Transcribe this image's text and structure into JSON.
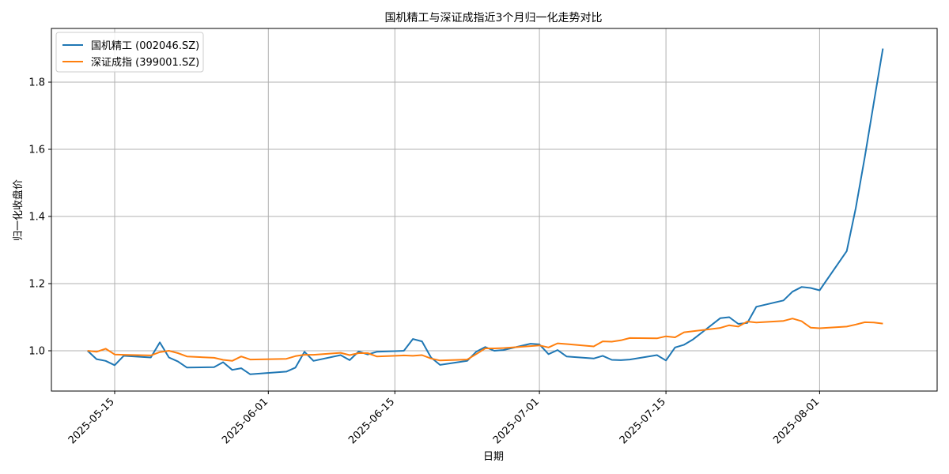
{
  "chart_data": {
    "type": "line",
    "title": "国机精工与深证成指近3个月归一化走势对比",
    "xlabel": "日期",
    "ylabel": "归一化收盘价",
    "x_ticks": [
      "2025-05-15",
      "2025-06-01",
      "2025-06-15",
      "2025-07-01",
      "2025-07-15",
      "2025-08-01"
    ],
    "y_ticks": [
      "1.0",
      "1.2",
      "1.4",
      "1.6",
      "1.8"
    ],
    "ylim": [
      0.88,
      1.96
    ],
    "xlim": [
      "2025-05-08",
      "2025-08-14"
    ],
    "grid": true,
    "legend_position": "top-left",
    "series": [
      {
        "name": "国机精工 (002046.SZ)",
        "color": "#1f77b4",
        "points": [
          [
            "2025-05-12",
            1.0
          ],
          [
            "2025-05-13",
            0.975
          ],
          [
            "2025-05-14",
            0.97
          ],
          [
            "2025-05-15",
            0.957
          ],
          [
            "2025-05-16",
            0.985
          ],
          [
            "2025-05-19",
            0.98
          ],
          [
            "2025-05-20",
            1.025
          ],
          [
            "2025-05-21",
            0.98
          ],
          [
            "2025-05-22",
            0.968
          ],
          [
            "2025-05-23",
            0.95
          ],
          [
            "2025-05-26",
            0.951
          ],
          [
            "2025-05-27",
            0.966
          ],
          [
            "2025-05-28",
            0.943
          ],
          [
            "2025-05-29",
            0.948
          ],
          [
            "2025-05-30",
            0.93
          ],
          [
            "2025-06-03",
            0.938
          ],
          [
            "2025-06-04",
            0.95
          ],
          [
            "2025-06-05",
            0.997
          ],
          [
            "2025-06-06",
            0.97
          ],
          [
            "2025-06-09",
            0.987
          ],
          [
            "2025-06-10",
            0.972
          ],
          [
            "2025-06-11",
            0.998
          ],
          [
            "2025-06-12",
            0.989
          ],
          [
            "2025-06-13",
            0.997
          ],
          [
            "2025-06-16",
            1.0
          ],
          [
            "2025-06-17",
            1.035
          ],
          [
            "2025-06-18",
            1.028
          ],
          [
            "2025-06-19",
            0.98
          ],
          [
            "2025-06-20",
            0.958
          ],
          [
            "2025-06-23",
            0.97
          ],
          [
            "2025-06-24",
            0.997
          ],
          [
            "2025-06-25",
            1.011
          ],
          [
            "2025-06-26",
            1.0
          ],
          [
            "2025-06-27",
            1.002
          ],
          [
            "2025-06-30",
            1.021
          ],
          [
            "2025-07-01",
            1.019
          ],
          [
            "2025-07-02",
            0.99
          ],
          [
            "2025-07-03",
            1.002
          ],
          [
            "2025-07-04",
            0.983
          ],
          [
            "2025-07-07",
            0.977
          ],
          [
            "2025-07-08",
            0.985
          ],
          [
            "2025-07-09",
            0.973
          ],
          [
            "2025-07-10",
            0.972
          ],
          [
            "2025-07-11",
            0.974
          ],
          [
            "2025-07-14",
            0.987
          ],
          [
            "2025-07-15",
            0.971
          ],
          [
            "2025-07-16",
            1.01
          ],
          [
            "2025-07-17",
            1.018
          ],
          [
            "2025-07-18",
            1.034
          ],
          [
            "2025-07-21",
            1.097
          ],
          [
            "2025-07-22",
            1.1
          ],
          [
            "2025-07-23",
            1.08
          ],
          [
            "2025-07-24",
            1.083
          ],
          [
            "2025-07-25",
            1.131
          ],
          [
            "2025-07-28",
            1.15
          ],
          [
            "2025-07-29",
            1.176
          ],
          [
            "2025-07-30",
            1.19
          ],
          [
            "2025-07-31",
            1.187
          ],
          [
            "2025-08-01",
            1.18
          ],
          [
            "2025-08-04",
            1.297
          ],
          [
            "2025-08-05",
            1.425
          ],
          [
            "2025-08-06",
            1.578
          ],
          [
            "2025-08-07",
            1.74
          ],
          [
            "2025-08-08",
            1.9
          ]
        ]
      },
      {
        "name": "深证成指 (399001.SZ)",
        "color": "#ff7f0e",
        "points": [
          [
            "2025-05-12",
            1.0
          ],
          [
            "2025-05-13",
            0.997
          ],
          [
            "2025-05-14",
            1.006
          ],
          [
            "2025-05-15",
            0.989
          ],
          [
            "2025-05-16",
            0.988
          ],
          [
            "2025-05-19",
            0.986
          ],
          [
            "2025-05-20",
            0.996
          ],
          [
            "2025-05-21",
            1.0
          ],
          [
            "2025-05-22",
            0.993
          ],
          [
            "2025-05-23",
            0.983
          ],
          [
            "2025-05-26",
            0.979
          ],
          [
            "2025-05-27",
            0.973
          ],
          [
            "2025-05-28",
            0.97
          ],
          [
            "2025-05-29",
            0.983
          ],
          [
            "2025-05-30",
            0.974
          ],
          [
            "2025-06-03",
            0.976
          ],
          [
            "2025-06-04",
            0.984
          ],
          [
            "2025-06-05",
            0.988
          ],
          [
            "2025-06-06",
            0.988
          ],
          [
            "2025-06-09",
            0.994
          ],
          [
            "2025-06-10",
            0.987
          ],
          [
            "2025-06-11",
            0.993
          ],
          [
            "2025-06-12",
            0.993
          ],
          [
            "2025-06-13",
            0.983
          ],
          [
            "2025-06-16",
            0.986
          ],
          [
            "2025-06-17",
            0.985
          ],
          [
            "2025-06-18",
            0.987
          ],
          [
            "2025-06-19",
            0.977
          ],
          [
            "2025-06-20",
            0.971
          ],
          [
            "2025-06-23",
            0.974
          ],
          [
            "2025-06-24",
            0.99
          ],
          [
            "2025-06-25",
            1.007
          ],
          [
            "2025-06-26",
            1.007
          ],
          [
            "2025-06-27",
            1.008
          ],
          [
            "2025-06-30",
            1.014
          ],
          [
            "2025-07-01",
            1.016
          ],
          [
            "2025-07-02",
            1.01
          ],
          [
            "2025-07-03",
            1.022
          ],
          [
            "2025-07-04",
            1.02
          ],
          [
            "2025-07-07",
            1.013
          ],
          [
            "2025-07-08",
            1.028
          ],
          [
            "2025-07-09",
            1.027
          ],
          [
            "2025-07-10",
            1.031
          ],
          [
            "2025-07-11",
            1.038
          ],
          [
            "2025-07-14",
            1.037
          ],
          [
            "2025-07-15",
            1.043
          ],
          [
            "2025-07-16",
            1.04
          ],
          [
            "2025-07-17",
            1.055
          ],
          [
            "2025-07-18",
            1.058
          ],
          [
            "2025-07-21",
            1.068
          ],
          [
            "2025-07-22",
            1.076
          ],
          [
            "2025-07-23",
            1.072
          ],
          [
            "2025-07-24",
            1.087
          ],
          [
            "2025-07-25",
            1.084
          ],
          [
            "2025-07-28",
            1.089
          ],
          [
            "2025-07-29",
            1.096
          ],
          [
            "2025-07-30",
            1.088
          ],
          [
            "2025-07-31",
            1.069
          ],
          [
            "2025-08-01",
            1.067
          ],
          [
            "2025-08-04",
            1.072
          ],
          [
            "2025-08-05",
            1.078
          ],
          [
            "2025-08-06",
            1.085
          ],
          [
            "2025-08-07",
            1.084
          ],
          [
            "2025-08-08",
            1.081
          ]
        ]
      }
    ]
  }
}
